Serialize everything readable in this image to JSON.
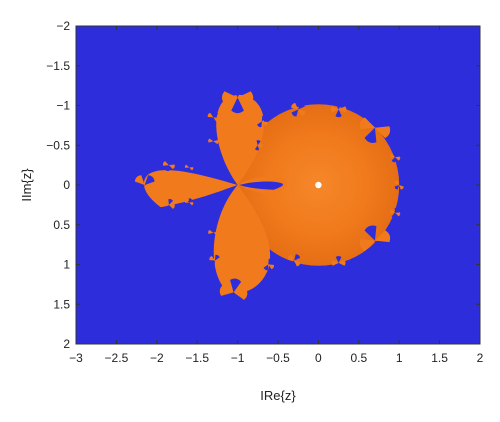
{
  "chart_data": {
    "type": "heatmap",
    "title": "",
    "xlabel": "IRe{z}",
    "ylabel": "IIm{z}",
    "xlim": [
      -3,
      2
    ],
    "ylim": [
      -2,
      2
    ],
    "y_axis_inverted": true,
    "grid": false,
    "xticks": [
      -3,
      -2.5,
      -2,
      -1.5,
      -1,
      -0.5,
      0,
      0.5,
      1,
      1.5,
      2
    ],
    "xtick_labels": [
      "−3",
      "−2.5",
      "−2",
      "−1.5",
      "−1",
      "−0.5",
      "0",
      "0.5",
      "1",
      "1.5",
      "2"
    ],
    "yticks": [
      -2,
      -1.5,
      -1,
      -0.5,
      0,
      0.5,
      1,
      1.5,
      2
    ],
    "ytick_labels": [
      "−2",
      "−1.5",
      "−1",
      "−0.5",
      "0",
      "0.5",
      "1",
      "1.5",
      "2"
    ],
    "colors": {
      "background": "#2d2ddb",
      "basin": "#f07a1c",
      "basin_dark": "#e36a12",
      "basin_light": "#f5872a",
      "fixed_point": "#ffffff"
    },
    "regions": {
      "main_disc": {
        "center": [
          0,
          0
        ],
        "radius": 1
      },
      "fixed_point": [
        0,
        0
      ],
      "upper_lobe_tip": [
        -1.0,
        -1.1
      ],
      "lower_lobe_tip": [
        -1.0,
        1.35
      ],
      "left_lobe_tip": [
        -2.15,
        0
      ],
      "pinch_point": [
        -1.0,
        0
      ]
    }
  }
}
